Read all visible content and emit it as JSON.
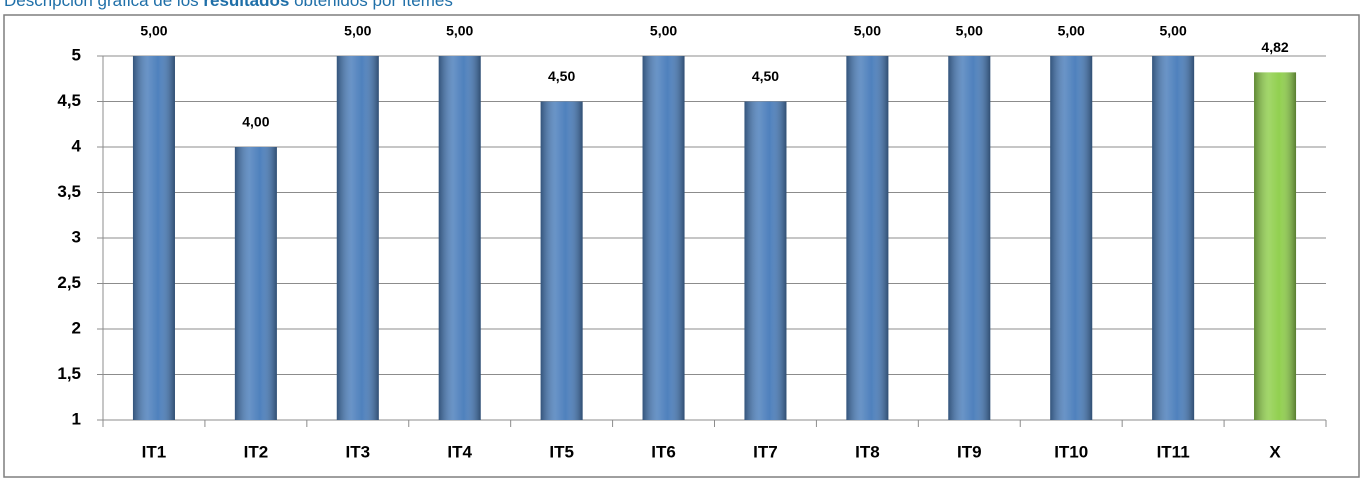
{
  "chart_data": {
    "type": "bar",
    "title_parts": [
      "Descripción gráfica de los ",
      "resultados",
      " obtenidos por ítemes"
    ],
    "categories": [
      "IT1",
      "IT2",
      "IT3",
      "IT4",
      "IT5",
      "IT6",
      "IT7",
      "IT8",
      "IT9",
      "IT10",
      "IT11",
      "X"
    ],
    "values": [
      5,
      4,
      5,
      5,
      4.5,
      5,
      4.5,
      5,
      5,
      5,
      5,
      4.82
    ],
    "value_labels": [
      "5,00",
      "4,00",
      "5,00",
      "5,00",
      "4,50",
      "5,00",
      "4,50",
      "5,00",
      "5,00",
      "5,00",
      "5,00",
      "4,82"
    ],
    "colors": [
      "#4f81bd",
      "#4f81bd",
      "#4f81bd",
      "#4f81bd",
      "#4f81bd",
      "#4f81bd",
      "#4f81bd",
      "#4f81bd",
      "#4f81bd",
      "#4f81bd",
      "#4f81bd",
      "#92d050"
    ],
    "ylim": [
      1,
      5
    ],
    "yticks": [
      1,
      {
        "value": 1.5,
        "label": "1,5"
      },
      2,
      {
        "value": 2.5,
        "label": "2,5"
      },
      3,
      {
        "value": 3.5,
        "label": "3,5"
      },
      4,
      {
        "value": 4.5,
        "label": "4,5"
      },
      5
    ],
    "grid": true
  }
}
